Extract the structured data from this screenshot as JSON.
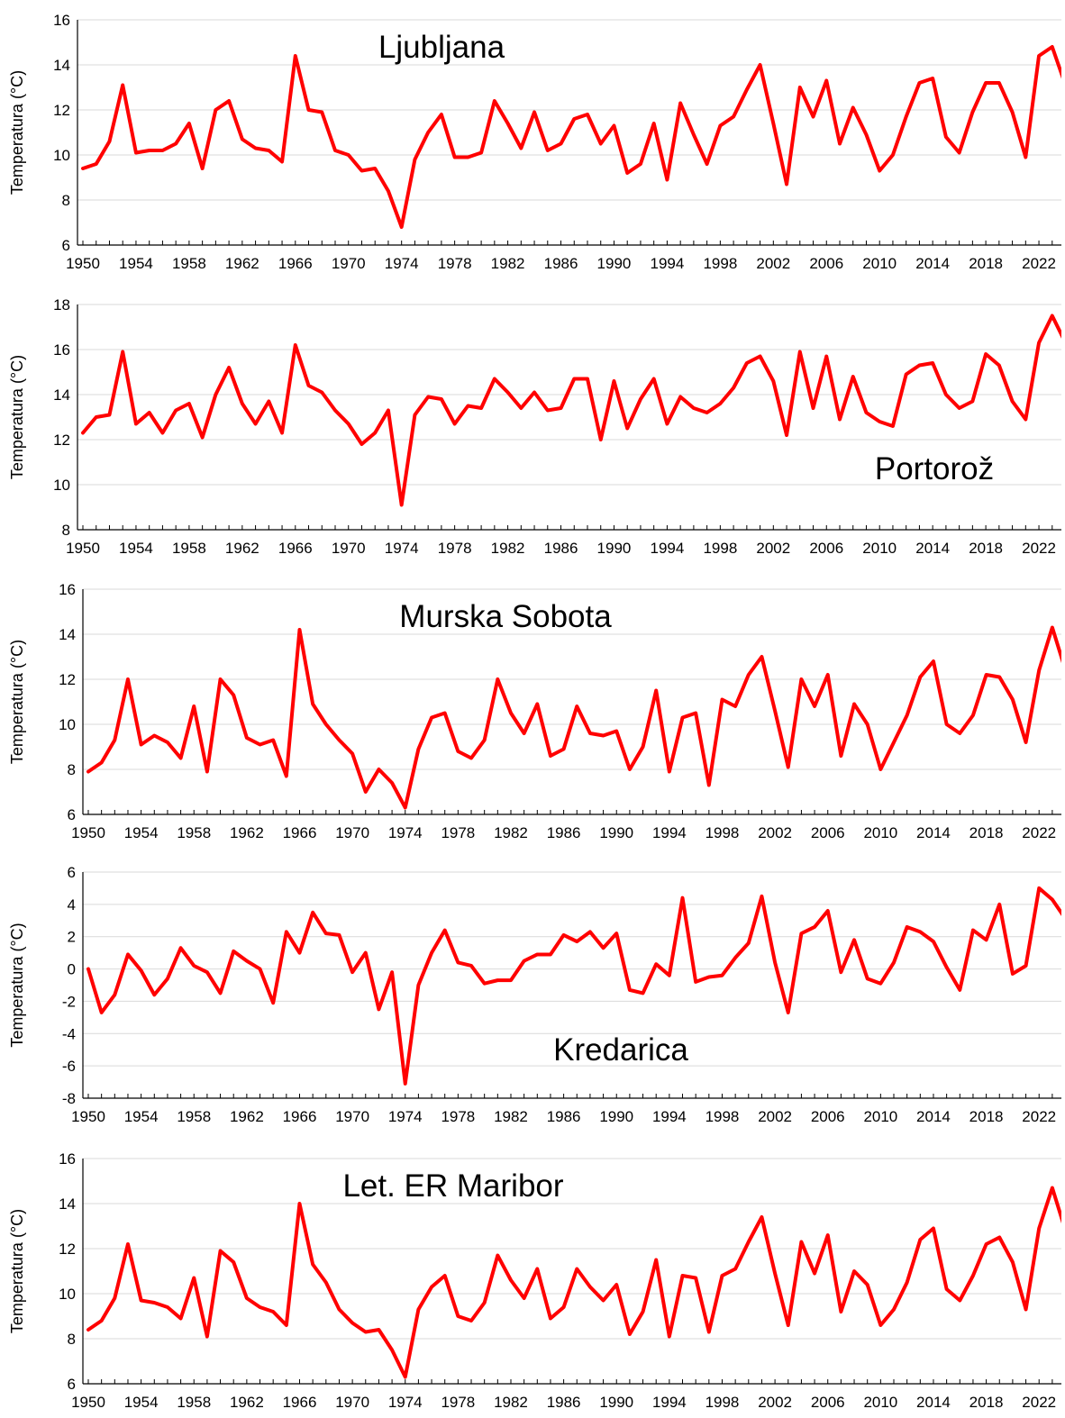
{
  "chart_data": [
    {
      "type": "line",
      "station": "Ljubljana",
      "ylabel": "Temperatura (°C)",
      "ylim": [
        6,
        16
      ],
      "yticks": [
        "6",
        "8",
        "10",
        "12",
        "14",
        "16"
      ],
      "xticks": [
        "1950",
        "1954",
        "1958",
        "1962",
        "1966",
        "1970",
        "1974",
        "1978",
        "1982",
        "1986",
        "1990",
        "1994",
        "1998",
        "2002",
        "2006",
        "2010",
        "2014",
        "2018",
        "2022"
      ],
      "x_start": 1950,
      "x_end": 2024,
      "grid": true,
      "color": "#ff0000",
      "values": [
        9.4,
        9.6,
        10.6,
        13.1,
        10.1,
        10.2,
        10.2,
        10.5,
        11.4,
        9.4,
        12.0,
        12.4,
        10.7,
        10.3,
        10.2,
        9.7,
        14.4,
        12.0,
        11.9,
        10.2,
        10.0,
        9.3,
        9.4,
        8.4,
        6.8,
        9.8,
        11.0,
        11.8,
        9.9,
        9.9,
        10.1,
        12.4,
        11.4,
        10.3,
        11.9,
        10.2,
        10.5,
        11.6,
        11.8,
        10.5,
        11.3,
        9.2,
        9.6,
        11.4,
        8.9,
        12.3,
        10.9,
        9.6,
        11.3,
        11.7,
        12.9,
        14.0,
        11.4,
        8.7,
        13.0,
        11.7,
        13.3,
        10.5,
        12.1,
        10.9,
        9.3,
        10.0,
        11.7,
        13.2,
        13.4,
        10.8,
        10.1,
        11.9,
        13.2,
        13.2,
        11.9,
        9.9,
        14.4,
        14.8,
        13.1
      ]
    },
    {
      "type": "line",
      "station": "Portorož",
      "ylabel": "Temperatura (°C)",
      "ylim": [
        8,
        18
      ],
      "yticks": [
        "8",
        "10",
        "12",
        "14",
        "16",
        "18"
      ],
      "xticks": [
        "1950",
        "1954",
        "1958",
        "1962",
        "1966",
        "1970",
        "1974",
        "1978",
        "1982",
        "1986",
        "1990",
        "1994",
        "1998",
        "2002",
        "2006",
        "2010",
        "2014",
        "2018",
        "2022"
      ],
      "x_start": 1950,
      "x_end": 2024,
      "grid": true,
      "color": "#ff0000",
      "values": [
        12.3,
        13.0,
        13.1,
        15.9,
        12.7,
        13.2,
        12.3,
        13.3,
        13.6,
        12.1,
        14.0,
        15.2,
        13.6,
        12.7,
        13.7,
        12.3,
        16.2,
        14.4,
        14.1,
        13.3,
        12.7,
        11.8,
        12.3,
        13.3,
        9.1,
        13.1,
        13.9,
        13.8,
        12.7,
        13.5,
        13.4,
        14.7,
        14.1,
        13.4,
        14.1,
        13.3,
        13.4,
        14.7,
        14.7,
        12.0,
        14.6,
        12.5,
        13.8,
        14.7,
        12.7,
        13.9,
        13.4,
        13.2,
        13.6,
        14.3,
        15.4,
        15.7,
        14.6,
        12.2,
        15.9,
        13.4,
        15.7,
        12.9,
        14.8,
        13.2,
        12.8,
        12.6,
        14.9,
        15.3,
        15.4,
        14.0,
        13.4,
        13.7,
        15.8,
        15.3,
        13.7,
        12.9,
        16.3,
        17.5,
        16.3
      ]
    },
    {
      "type": "line",
      "station": "Murska Sobota",
      "ylabel": "Temperatura (°C)",
      "ylim": [
        6,
        16
      ],
      "yticks": [
        "6",
        "8",
        "10",
        "12",
        "14",
        "16"
      ],
      "xticks": [
        "1950",
        "1954",
        "1958",
        "1962",
        "1966",
        "1970",
        "1974",
        "1978",
        "1982",
        "1986",
        "1990",
        "1994",
        "1998",
        "2002",
        "2006",
        "2010",
        "2014",
        "2018",
        "2022"
      ],
      "x_start": 1950,
      "x_end": 2024,
      "grid": true,
      "color": "#ff0000",
      "values": [
        7.9,
        8.3,
        9.3,
        12.0,
        9.1,
        9.5,
        9.2,
        8.5,
        10.8,
        7.9,
        12.0,
        11.3,
        9.4,
        9.1,
        9.3,
        7.7,
        14.2,
        10.9,
        10.0,
        9.3,
        8.7,
        7.0,
        8.0,
        7.4,
        6.3,
        8.9,
        10.3,
        10.5,
        8.8,
        8.5,
        9.3,
        12.0,
        10.5,
        9.6,
        10.9,
        8.6,
        8.9,
        10.8,
        9.6,
        9.5,
        9.7,
        8.0,
        9.0,
        11.5,
        7.9,
        10.3,
        10.5,
        7.3,
        11.1,
        10.8,
        12.2,
        13.0,
        10.6,
        8.1,
        12.0,
        10.8,
        12.2,
        8.6,
        10.9,
        10.0,
        8.0,
        9.2,
        10.4,
        12.1,
        12.8,
        10.0,
        9.6,
        10.4,
        12.2,
        12.1,
        11.1,
        9.2,
        12.4,
        14.3,
        12.4
      ]
    },
    {
      "type": "line",
      "station": "Kredarica",
      "ylabel": "Temperatura (°C)",
      "ylim": [
        -8,
        6
      ],
      "yticks": [
        "-8",
        "-6",
        "-4",
        "-2",
        "0",
        "2",
        "4",
        "6"
      ],
      "xticks": [
        "1950",
        "1954",
        "1958",
        "1962",
        "1966",
        "1970",
        "1974",
        "1978",
        "1982",
        "1986",
        "1990",
        "1994",
        "1998",
        "2002",
        "2006",
        "2010",
        "2014",
        "2018",
        "2022"
      ],
      "x_start": 1950,
      "x_end": 2024,
      "grid": true,
      "color": "#ff0000",
      "values": [
        0.0,
        -2.7,
        -1.6,
        0.9,
        -0.1,
        -1.6,
        -0.6,
        1.3,
        0.2,
        -0.2,
        -1.5,
        1.1,
        0.5,
        0.0,
        -2.1,
        2.3,
        1.0,
        3.5,
        2.2,
        2.1,
        -0.2,
        1.0,
        -2.5,
        -0.2,
        -7.1,
        -1.0,
        1.0,
        2.4,
        0.4,
        0.2,
        -0.9,
        -0.7,
        -0.7,
        0.5,
        0.9,
        0.9,
        2.1,
        1.7,
        2.3,
        1.3,
        2.2,
        -1.3,
        -1.5,
        0.3,
        -0.4,
        4.4,
        -0.8,
        -0.5,
        -0.4,
        0.7,
        1.6,
        4.5,
        0.4,
        -2.7,
        2.2,
        2.6,
        3.6,
        -0.2,
        1.8,
        -0.6,
        -0.9,
        0.4,
        2.6,
        2.3,
        1.7,
        0.1,
        -1.3,
        2.4,
        1.8,
        4.0,
        -0.3,
        0.2,
        5.0,
        4.3,
        3.1
      ]
    },
    {
      "type": "line",
      "station": "Let. ER Maribor",
      "ylabel": "Temperatura (°C)",
      "ylim": [
        6,
        16
      ],
      "yticks": [
        "6",
        "8",
        "10",
        "12",
        "14",
        "16"
      ],
      "xticks": [
        "1950",
        "1954",
        "1958",
        "1962",
        "1966",
        "1970",
        "1974",
        "1978",
        "1982",
        "1986",
        "1990",
        "1994",
        "1998",
        "2002",
        "2006",
        "2010",
        "2014",
        "2018",
        "2022"
      ],
      "x_start": 1950,
      "x_end": 2024,
      "grid": true,
      "color": "#ff0000",
      "values": [
        8.4,
        8.8,
        9.8,
        12.2,
        9.7,
        9.6,
        9.4,
        8.9,
        10.7,
        8.1,
        11.9,
        11.4,
        9.8,
        9.4,
        9.2,
        8.6,
        14.0,
        11.3,
        10.5,
        9.3,
        8.7,
        8.3,
        8.4,
        7.5,
        6.3,
        9.3,
        10.3,
        10.8,
        9.0,
        8.8,
        9.6,
        11.7,
        10.6,
        9.8,
        11.1,
        8.9,
        9.4,
        11.1,
        10.3,
        9.7,
        10.4,
        8.2,
        9.2,
        11.5,
        8.1,
        10.8,
        10.7,
        8.3,
        10.8,
        11.1,
        12.3,
        13.4,
        10.9,
        8.6,
        12.3,
        10.9,
        12.6,
        9.2,
        11.0,
        10.4,
        8.6,
        9.3,
        10.5,
        12.4,
        12.9,
        10.2,
        9.7,
        10.8,
        12.2,
        12.5,
        11.4,
        9.3,
        12.9,
        14.7,
        12.8
      ]
    }
  ]
}
